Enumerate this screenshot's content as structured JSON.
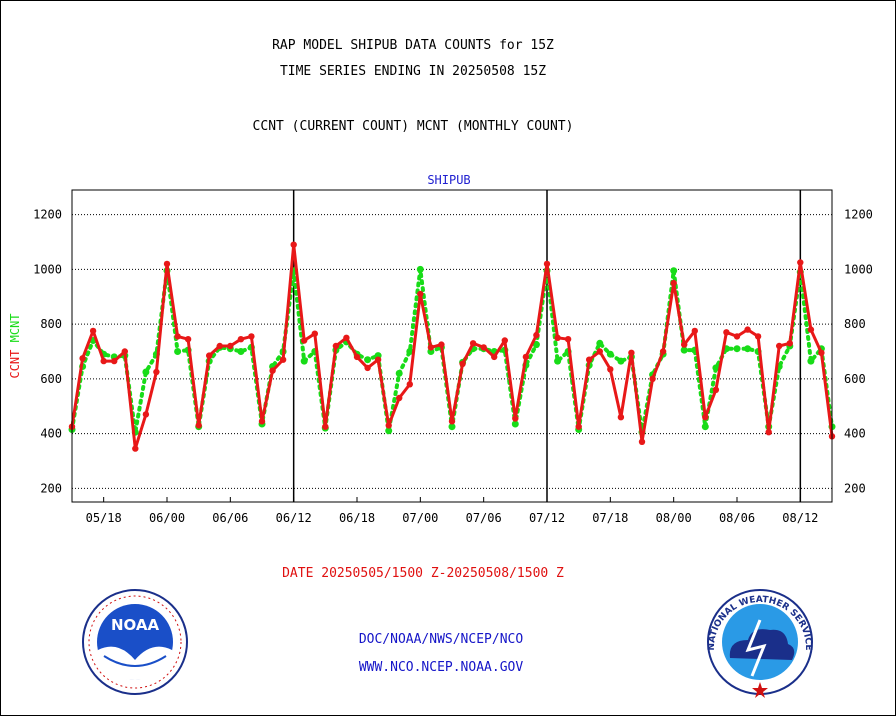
{
  "header": {
    "title_line1": "RAP MODEL SHIPUB DATA COUNTS for 15Z",
    "title_line2": "TIME SERIES ENDING IN 20250508 15Z",
    "legend_line": "CCNT (CURRENT COUNT) MCNT (MONTHLY COUNT)"
  },
  "footer": {
    "date_range": "DATE 20250505/1500 Z-20250508/1500 Z",
    "org": "DOC/NOAA/NWS/NCEP/NCO",
    "url": "WWW.NCO.NCEP.NOAA.GOV",
    "logo_left_text": "NOAA",
    "logo_right_text": "NATIONAL WEATHER SERVICE"
  },
  "colors": {
    "ccnt": "#e81818",
    "mcnt": "#18dc18",
    "subtitle": "#2020d0",
    "grid": "#000000"
  },
  "chart_data": {
    "type": "line",
    "title": "SHIPUB",
    "ylabel_parts": [
      {
        "text": "CCNT",
        "color": "#e81818"
      },
      {
        "text": "MCNT",
        "color": "#18dc18"
      }
    ],
    "ylim": [
      150,
      1290
    ],
    "yticks": [
      200,
      400,
      600,
      800,
      1000,
      1200
    ],
    "xlim": [
      0,
      72
    ],
    "xticks": [
      {
        "x": 3,
        "label": "05/18"
      },
      {
        "x": 9,
        "label": "06/00"
      },
      {
        "x": 15,
        "label": "06/06"
      },
      {
        "x": 21,
        "label": "06/12"
      },
      {
        "x": 27,
        "label": "06/18"
      },
      {
        "x": 33,
        "label": "07/00"
      },
      {
        "x": 39,
        "label": "07/06"
      },
      {
        "x": 45,
        "label": "07/12"
      },
      {
        "x": 51,
        "label": "07/18"
      },
      {
        "x": 57,
        "label": "08/00"
      },
      {
        "x": 63,
        "label": "08/06"
      },
      {
        "x": 69,
        "label": "08/12"
      }
    ],
    "day_markers": [
      21,
      45,
      69
    ],
    "grid": "horizontal dotted",
    "series": [
      {
        "name": "CCNT",
        "style": "solid",
        "color": "#e81818",
        "values": [
          425,
          675,
          775,
          665,
          665,
          700,
          345,
          470,
          625,
          1020,
          755,
          745,
          430,
          685,
          720,
          720,
          745,
          755,
          445,
          630,
          670,
          1090,
          740,
          765,
          425,
          720,
          750,
          680,
          640,
          670,
          430,
          530,
          580,
          910,
          715,
          725,
          445,
          655,
          730,
          715,
          680,
          740,
          455,
          680,
          760,
          1020,
          750,
          745,
          425,
          670,
          700,
          635,
          460,
          695,
          370,
          600,
          700,
          950,
          725,
          775,
          460,
          560,
          770,
          755,
          780,
          755,
          405,
          720,
          730,
          1025,
          780,
          695,
          390
        ]
      },
      {
        "name": "MCNT",
        "style": "dotted",
        "color": "#18dc18",
        "values": [
          415,
          645,
          740,
          690,
          680,
          685,
          405,
          625,
          690,
          995,
          700,
          705,
          425,
          665,
          715,
          710,
          700,
          715,
          435,
          645,
          700,
          995,
          665,
          700,
          420,
          705,
          735,
          690,
          670,
          685,
          410,
          620,
          700,
          1000,
          700,
          715,
          425,
          660,
          710,
          710,
          700,
          705,
          435,
          650,
          725,
          995,
          665,
          700,
          415,
          650,
          730,
          690,
          665,
          680,
          405,
          615,
          690,
          995,
          705,
          705,
          425,
          640,
          710,
          710,
          710,
          700,
          425,
          645,
          720,
          990,
          665,
          710,
          425
        ]
      }
    ]
  }
}
